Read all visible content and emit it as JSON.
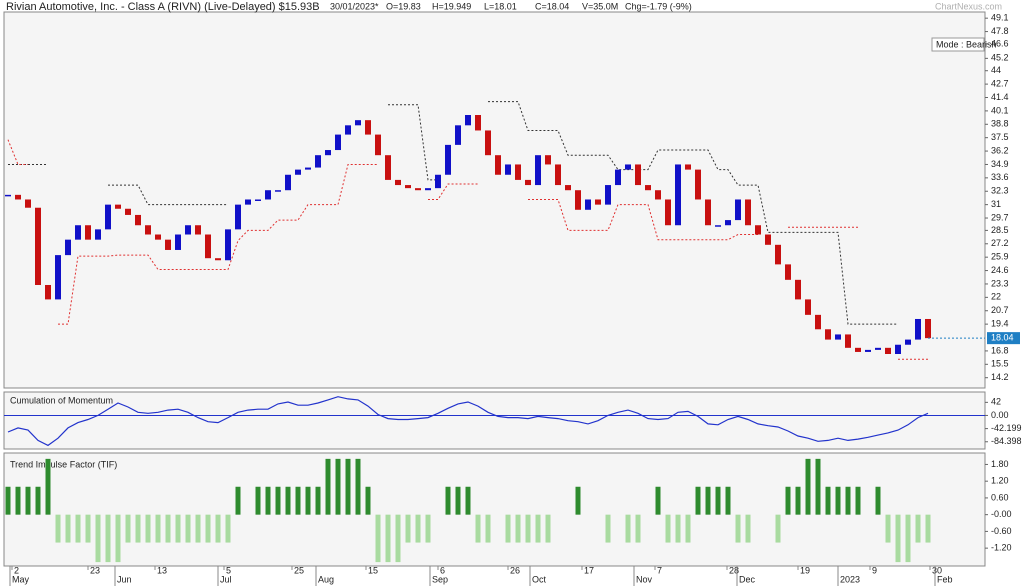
{
  "chart_data": [
    {
      "type": "candlestick",
      "title": "Rivian Automotive, Inc. - Class A (RIVN) (Live-Delayed) $15.93B",
      "info": [
        "30/01/2023*",
        "O=19.83",
        "H=19.949",
        "L=18.01",
        "C=18.04",
        "V=35.0M",
        "Chg=-1.79 (-9%)"
      ],
      "watermark": "ChartNexus.com",
      "annotation": "Mode : Bearish",
      "up_color": "#1010c8",
      "down_color": "#c81010",
      "series": [
        {
          "color": "#1f7fc4",
          "values": [
            31.95,
            31.5,
            30.7,
            23.2,
            21.8,
            26.1,
            27.6,
            29.0,
            27.6,
            28.6,
            31.0,
            30.6,
            30.0,
            29.0,
            28.1,
            27.6,
            26.6,
            28.1,
            29.0,
            28.1,
            25.8,
            25.6,
            28.6,
            31.0,
            31.5,
            31.5,
            32.4,
            32.4,
            33.9,
            34.4,
            34.6,
            35.8,
            36.3,
            37.8,
            38.7,
            39.2,
            37.8,
            35.8,
            33.4,
            32.9,
            32.6,
            32.4,
            32.6,
            33.9,
            36.8,
            38.7,
            39.7,
            38.2,
            35.8,
            33.9,
            34.9,
            33.4,
            32.9,
            35.8,
            34.9,
            32.9,
            32.4,
            30.5,
            31.5,
            31.0,
            32.9,
            34.4,
            34.9,
            32.9,
            32.4,
            31.5,
            29.0,
            34.9,
            34.4,
            31.5,
            29.0,
            29.0,
            29.5,
            31.5,
            29.0,
            28.1,
            27.1,
            25.2,
            23.7,
            21.8,
            20.3,
            18.9,
            17.9,
            18.4,
            17.1,
            16.7,
            16.9,
            17.1,
            16.5,
            17.4,
            17.9,
            19.9,
            18.04
          ]
        },
        {
          "color": "#333333",
          "values": [
            34.9,
            34.9,
            34.9,
            34.9,
            34.9,
            null,
            null,
            null,
            null,
            null,
            32.9,
            32.9,
            32.9,
            32.9,
            31.0,
            31.0,
            31.0,
            31.0,
            31.0,
            31.0,
            31.0,
            31.0,
            31.0,
            null,
            null,
            null,
            null,
            null,
            null,
            null,
            null,
            null,
            null,
            null,
            null,
            null,
            null,
            null,
            40.7,
            40.7,
            40.7,
            40.7,
            33.4,
            33.4,
            null,
            null,
            null,
            null,
            41.0,
            41.0,
            41.0,
            41.0,
            38.2,
            38.2,
            38.2,
            38.2,
            35.8,
            35.8,
            35.8,
            35.8,
            35.8,
            34.4,
            34.4,
            34.4,
            34.4,
            36.3,
            36.3,
            36.3,
            36.3,
            36.3,
            36.3,
            34.4,
            34.4,
            32.9,
            32.9,
            32.9,
            28.3,
            28.3,
            28.3,
            28.3,
            28.3,
            28.3,
            28.3,
            28.3,
            19.4,
            19.4,
            19.4,
            19.4,
            19.4,
            19.4,
            null,
            null,
            null
          ]
        },
        {
          "color": "#e03030",
          "values": [
            37.3,
            34.9,
            34.9,
            null,
            null,
            19.4,
            19.4,
            26.0,
            26.0,
            26.0,
            26.0,
            26.1,
            26.1,
            26.1,
            26.1,
            24.7,
            24.7,
            24.7,
            24.7,
            24.7,
            24.7,
            24.7,
            24.7,
            27.5,
            28.5,
            28.5,
            28.5,
            29.5,
            29.5,
            29.5,
            31.0,
            31.0,
            31.0,
            31.0,
            34.9,
            34.9,
            34.9,
            34.9,
            null,
            null,
            null,
            null,
            31.5,
            31.5,
            33.0,
            33.0,
            33.0,
            33.0,
            null,
            null,
            null,
            null,
            31.5,
            31.5,
            31.5,
            31.5,
            28.5,
            28.5,
            28.5,
            28.5,
            28.5,
            31.0,
            31.0,
            31.0,
            31.0,
            27.6,
            27.6,
            27.6,
            27.6,
            27.6,
            27.6,
            27.6,
            27.6,
            28.1,
            28.1,
            28.1,
            null,
            null,
            28.8,
            28.8,
            28.8,
            28.8,
            28.8,
            28.8,
            28.8,
            28.8,
            null,
            null,
            null,
            16.0,
            16.0,
            16.0,
            16.0
          ]
        }
      ],
      "xlim": [
        -0.4,
        97.7
      ],
      "ylim": [
        13.2,
        49.7
      ],
      "yticks": [
        49.1,
        47.8,
        46.6,
        45.2,
        44,
        42.7,
        41.4,
        40.1,
        38.8,
        37.5,
        36.2,
        34.9,
        33.6,
        32.3,
        31,
        29.7,
        28.5,
        27.2,
        25.9,
        24.6,
        23.3,
        22,
        20.7,
        19.4,
        16.8,
        15.5,
        14.2
      ],
      "xticks": [
        {
          "value": 0.4,
          "label": "2"
        },
        {
          "value": 8,
          "label": "23"
        },
        {
          "value": 14.7,
          "label": "13"
        },
        {
          "value": 21.6,
          "label": "5"
        },
        {
          "value": 28.4,
          "label": "25"
        },
        {
          "value": 35.8,
          "label": "15"
        },
        {
          "value": 43,
          "label": "6"
        },
        {
          "value": 50,
          "label": "26"
        },
        {
          "value": 57.4,
          "label": "17"
        },
        {
          "value": 64.7,
          "label": "7"
        },
        {
          "value": 71.9,
          "label": "28"
        },
        {
          "value": 79,
          "label": "19"
        },
        {
          "value": 86.2,
          "label": "9"
        },
        {
          "value": 92.2,
          "label": "30"
        }
      ],
      "xticks_month": [
        {
          "value": 0.2,
          "label": "May"
        },
        {
          "value": 10.7,
          "label": "Jun"
        },
        {
          "value": 21,
          "label": "Jul"
        },
        {
          "value": 30.8,
          "label": "Aug"
        },
        {
          "value": 42.2,
          "label": "Sep"
        },
        {
          "value": 52.2,
          "label": "Oct"
        },
        {
          "value": 62.6,
          "label": "Nov"
        },
        {
          "value": 72.9,
          "label": "Dec"
        },
        {
          "value": 83,
          "label": "2023"
        },
        {
          "value": 92.7,
          "label": "Feb"
        }
      ]
    },
    {
      "type": "line",
      "title": "Cumulation of Momentum",
      "color": "#2233cc",
      "values": [
        -53,
        -40,
        -47,
        -80,
        -96,
        -73,
        -40,
        -23,
        -13,
        0,
        20,
        40,
        27,
        10,
        7,
        10,
        17,
        20,
        10,
        -7,
        -20,
        -23,
        -7,
        10,
        17,
        20,
        20,
        37,
        43,
        33,
        33,
        40,
        50,
        60,
        53,
        50,
        30,
        3,
        -10,
        -13,
        -13,
        -10,
        -7,
        7,
        23,
        37,
        43,
        30,
        10,
        -3,
        -7,
        -7,
        -10,
        -3,
        -7,
        -10,
        -17,
        -20,
        -27,
        -17,
        0,
        10,
        17,
        7,
        -10,
        -13,
        -10,
        10,
        13,
        -3,
        -27,
        -30,
        -13,
        -3,
        -13,
        -27,
        -33,
        -37,
        -50,
        -66,
        -73,
        -83,
        -80,
        -73,
        -80,
        -76,
        -70,
        -63,
        -56,
        -47,
        -30,
        -7,
        7
      ],
      "ylim": [
        -107.6,
        75.2
      ],
      "yticks": [
        42,
        {
          "value": 0,
          "label": "0.00"
        },
        -42.199,
        -84.398
      ]
    },
    {
      "type": "bar",
      "title": "Trend Impulse Factor (TIF)",
      "color": "#2e8b2e",
      "negative_color": "#a9dba0",
      "values": [
        1,
        1,
        1,
        1,
        2,
        -1,
        -1,
        -1,
        -1,
        -1.7,
        -1.7,
        -1.7,
        -1,
        -1,
        -1,
        -1,
        -1,
        -1,
        -1,
        -1,
        -1,
        -1,
        -1,
        1,
        0,
        1,
        1,
        1,
        1,
        1,
        1,
        1,
        2,
        2,
        2,
        2,
        1,
        -1.7,
        -1.7,
        -1.7,
        -1,
        -1,
        -1,
        0,
        1,
        1,
        1,
        -1,
        -1,
        0,
        -1,
        -1,
        -1,
        -1,
        -1,
        0,
        0,
        1,
        0,
        0,
        -1,
        0,
        -1,
        -1,
        0,
        1,
        -1,
        -1,
        -1,
        1,
        1,
        1,
        1,
        -1,
        -1,
        0,
        0,
        -1,
        1,
        1,
        2,
        2,
        1,
        1,
        1,
        1,
        0,
        1,
        -1,
        -1.7,
        -1.7,
        -1,
        -1
      ],
      "ylim": [
        -1.84,
        2.21
      ],
      "yticks": [
        {
          "value": 1.8,
          "label": "1.80"
        },
        {
          "value": 1.2,
          "label": "1.20"
        },
        {
          "value": 0.6,
          "label": "0.60"
        },
        {
          "value": 0,
          "label": "-0.00"
        },
        {
          "value": -0.6,
          "label": "-0.60"
        },
        {
          "value": -1.2,
          "label": "-1.20"
        }
      ]
    }
  ]
}
